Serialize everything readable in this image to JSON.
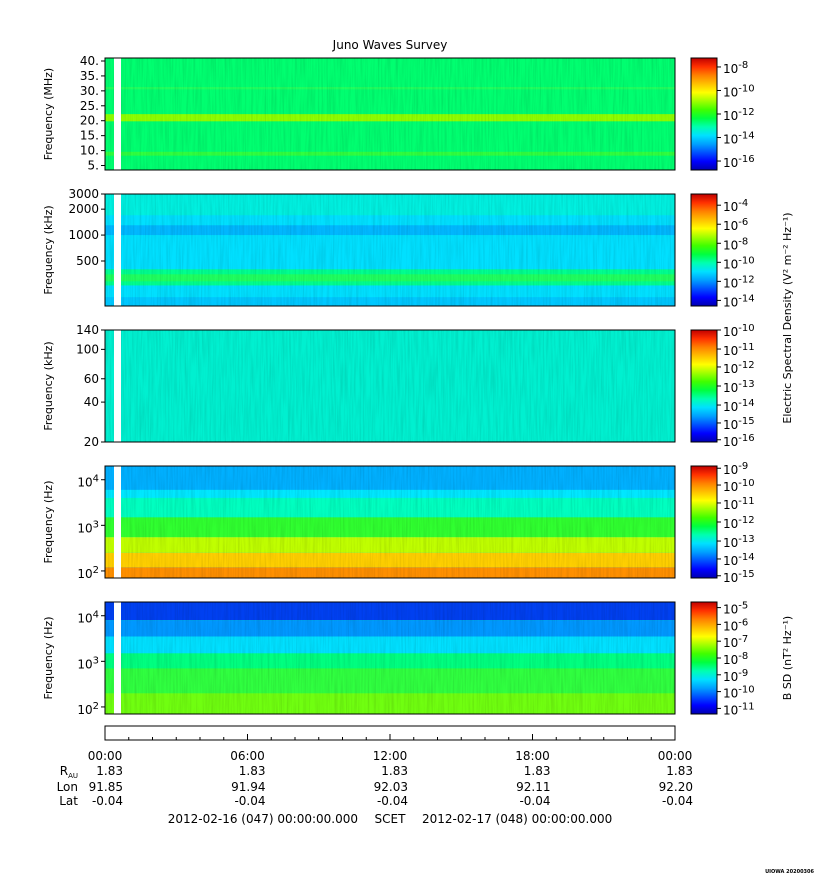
{
  "title": "Juno Waves Survey",
  "colors": {
    "background": "#ffffff",
    "frame": "#000000",
    "gap": "#ffffff"
  },
  "colormap": [
    "#0000b0",
    "#0000ff",
    "#0050ff",
    "#00a0ff",
    "#00e0ff",
    "#00ffb0",
    "#00ff40",
    "#40ff00",
    "#a0ff00",
    "#ffff00",
    "#ffc000",
    "#ff8000",
    "#ff3000",
    "#c00000"
  ],
  "chart_data": [
    {
      "type": "heatmap",
      "panel": 1,
      "ylabel": "Frequency (MHz)",
      "yscale": "linear",
      "ylim": [
        3.5,
        41
      ],
      "yticks": [
        {
          "v": 40,
          "l": "40."
        },
        {
          "v": 35,
          "l": "35."
        },
        {
          "v": 30,
          "l": "30."
        },
        {
          "v": 25,
          "l": "25."
        },
        {
          "v": 20,
          "l": "20."
        },
        {
          "v": 15,
          "l": "15."
        },
        {
          "v": 10,
          "l": "10."
        },
        {
          "v": 5,
          "l": "5."
        }
      ],
      "bands": [
        {
          "y0": 3.5,
          "y1": 41,
          "color": "#00ff70"
        },
        {
          "y0": 19.8,
          "y1": 22.2,
          "color": "#90ff00"
        },
        {
          "y0": 8.3,
          "y1": 9.6,
          "color": "#30ff40"
        },
        {
          "y0": 30.5,
          "y1": 31.3,
          "color": "#20ff60"
        }
      ],
      "colorbar": {
        "ticks": [
          {
            "e": -8,
            "f": 0.08
          },
          {
            "e": -10,
            "f": 0.29
          },
          {
            "e": -12,
            "f": 0.5
          },
          {
            "e": -14,
            "f": 0.71
          },
          {
            "e": -16,
            "f": 0.92
          }
        ]
      }
    },
    {
      "type": "heatmap",
      "panel": 2,
      "ylabel": "Frequency (kHz)",
      "yscale": "log",
      "ylim": [
        150,
        3000
      ],
      "yticks": [
        {
          "v": 3000,
          "l": "3000"
        },
        {
          "v": 2000,
          "l": "2000"
        },
        {
          "v": 1000,
          "l": "1000"
        },
        {
          "v": 500,
          "l": "500"
        }
      ],
      "bands": [
        {
          "y0": 150,
          "y1": 3000,
          "color": "#00e0ff"
        },
        {
          "y0": 1700,
          "y1": 3000,
          "color": "#00f0e0"
        },
        {
          "y0": 1000,
          "y1": 1300,
          "color": "#00b8ff"
        },
        {
          "y0": 260,
          "y1": 400,
          "color": "#00ff90"
        },
        {
          "y0": 290,
          "y1": 350,
          "color": "#20ff60"
        },
        {
          "y0": 150,
          "y1": 190,
          "color": "#00c8ff"
        }
      ],
      "colorbar": {
        "ticks": [
          {
            "e": -4,
            "f": 0.1
          },
          {
            "e": -6,
            "f": 0.27
          },
          {
            "e": -8,
            "f": 0.44
          },
          {
            "e": -10,
            "f": 0.61
          },
          {
            "e": -12,
            "f": 0.78
          },
          {
            "e": -14,
            "f": 0.95
          }
        ]
      },
      "colorbar_label": "Electric Spectral Density (V² m⁻² Hz⁻¹)"
    },
    {
      "type": "heatmap",
      "panel": 3,
      "ylabel": "Frequency (kHz)",
      "yscale": "log",
      "ylim": [
        20,
        140
      ],
      "yticks": [
        {
          "v": 140,
          "l": "140"
        },
        {
          "v": 100,
          "l": "100"
        },
        {
          "v": 60,
          "l": "60"
        },
        {
          "v": 40,
          "l": "40"
        },
        {
          "v": 20,
          "l": "20"
        }
      ],
      "bands": [
        {
          "y0": 20,
          "y1": 140,
          "color": "#00f0d0"
        }
      ],
      "colorbar": {
        "ticks": [
          {
            "e": -10,
            "f": 0.0
          },
          {
            "e": -11,
            "f": 0.17
          },
          {
            "e": -12,
            "f": 0.33
          },
          {
            "e": -13,
            "f": 0.5
          },
          {
            "e": -14,
            "f": 0.67
          },
          {
            "e": -15,
            "f": 0.83
          },
          {
            "e": -16,
            "f": 0.98
          }
        ]
      }
    },
    {
      "type": "heatmap",
      "panel": 4,
      "ylabel": "Frequency (Hz)",
      "yscale": "log",
      "ylim": [
        70,
        20000
      ],
      "yticks": [
        {
          "v": 10000,
          "l": "10",
          "sup": "4"
        },
        {
          "v": 1000,
          "l": "10",
          "sup": "3"
        },
        {
          "v": 100,
          "l": "10",
          "sup": "2"
        }
      ],
      "bands": [
        {
          "y0": 70,
          "y1": 20000,
          "color": "#00e8ff"
        },
        {
          "y0": 6000,
          "y1": 20000,
          "color": "#00b0ff"
        },
        {
          "y0": 1500,
          "y1": 4000,
          "color": "#00ffc0"
        },
        {
          "y0": 550,
          "y1": 1500,
          "color": "#30ff30"
        },
        {
          "y0": 250,
          "y1": 550,
          "color": "#c0ff00"
        },
        {
          "y0": 120,
          "y1": 250,
          "color": "#ffd000"
        },
        {
          "y0": 70,
          "y1": 120,
          "color": "#ff9000"
        }
      ],
      "colorbar": {
        "ticks": [
          {
            "e": -9,
            "f": 0.02
          },
          {
            "e": -10,
            "f": 0.17
          },
          {
            "e": -11,
            "f": 0.33
          },
          {
            "e": -12,
            "f": 0.5
          },
          {
            "e": -13,
            "f": 0.67
          },
          {
            "e": -14,
            "f": 0.83
          },
          {
            "e": -15,
            "f": 0.98
          }
        ]
      }
    },
    {
      "type": "heatmap",
      "panel": 5,
      "ylabel": "Frequency (Hz)",
      "yscale": "log",
      "ylim": [
        70,
        20000
      ],
      "yticks": [
        {
          "v": 10000,
          "l": "10",
          "sup": "4"
        },
        {
          "v": 1000,
          "l": "10",
          "sup": "3"
        },
        {
          "v": 100,
          "l": "10",
          "sup": "2"
        }
      ],
      "bands": [
        {
          "y0": 70,
          "y1": 20000,
          "color": "#00ff80"
        },
        {
          "y0": 8000,
          "y1": 20000,
          "color": "#0040f0"
        },
        {
          "y0": 3500,
          "y1": 8000,
          "color": "#0098ff"
        },
        {
          "y0": 1500,
          "y1": 3500,
          "color": "#00e0ff"
        },
        {
          "y0": 200,
          "y1": 700,
          "color": "#30ff40"
        },
        {
          "y0": 70,
          "y1": 200,
          "color": "#70ff10"
        }
      ],
      "colorbar": {
        "ticks": [
          {
            "e": -5,
            "f": 0.05
          },
          {
            "e": -6,
            "f": 0.2
          },
          {
            "e": -7,
            "f": 0.35
          },
          {
            "e": -8,
            "f": 0.5
          },
          {
            "e": -9,
            "f": 0.65
          },
          {
            "e": -10,
            "f": 0.8
          },
          {
            "e": -11,
            "f": 0.95
          }
        ]
      },
      "colorbar_label": "B SD (nT² Hz⁻¹)"
    }
  ],
  "time_axis": {
    "ticks": [
      "00:00",
      "06:00",
      "12:00",
      "18:00",
      "00:00"
    ],
    "rows": [
      {
        "label": "R",
        "sub": "AU",
        "values": [
          "1.83",
          "1.83",
          "1.83",
          "1.83",
          "1.83"
        ]
      },
      {
        "label": "Lon",
        "values": [
          "91.85",
          "91.94",
          "92.03",
          "92.11",
          "92.20"
        ]
      },
      {
        "label": "Lat",
        "values": [
          "-0.04",
          "-0.04",
          "-0.04",
          "-0.04",
          "-0.04"
        ]
      }
    ],
    "range_start": "2012-02-16 (047) 00:00:00.000",
    "scet": "SCET",
    "range_end": "2012-02-17 (048) 00:00:00.000"
  },
  "footer_stamp": "UIOWA 20200306"
}
